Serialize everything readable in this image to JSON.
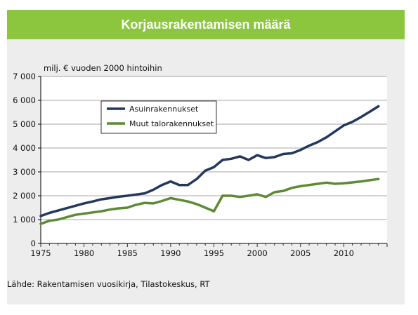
{
  "header": {
    "title": "Korjausrakentamisen määrä"
  },
  "chart_data": {
    "type": "line",
    "title": "Korjausrakentamisen määrä",
    "ylabel": "milj. € vuoden 2000 hintoihin",
    "xlabel": "",
    "source": "Lähde: Rakentamisen vuosikirja, Tilastokeskus, RT",
    "xlim": [
      1975,
      2015
    ],
    "ylim": [
      0,
      7000
    ],
    "x_ticks": [
      1975,
      1980,
      1985,
      1990,
      1995,
      2000,
      2005,
      2010
    ],
    "y_ticks": [
      {
        "value": 0,
        "label": "0"
      },
      {
        "value": 1000,
        "label": "1 000"
      },
      {
        "value": 2000,
        "label": "2 000"
      },
      {
        "value": 3000,
        "label": "3 000"
      },
      {
        "value": 4000,
        "label": "4 000"
      },
      {
        "value": 5000,
        "label": "5 000"
      },
      {
        "value": 6000,
        "label": "6 000"
      },
      {
        "value": 7000,
        "label": "7 000"
      }
    ],
    "grid": "horizontal",
    "legend_position": "top-left",
    "x": [
      1975,
      1976,
      1977,
      1978,
      1979,
      1980,
      1981,
      1982,
      1983,
      1984,
      1985,
      1986,
      1987,
      1988,
      1989,
      1990,
      1991,
      1992,
      1993,
      1994,
      1995,
      1996,
      1997,
      1998,
      1999,
      2000,
      2001,
      2002,
      2003,
      2004,
      2005,
      2006,
      2007,
      2008,
      2009,
      2010,
      2011,
      2012,
      2013,
      2014
    ],
    "series": [
      {
        "name": "Asuinrakennukset",
        "color": "#23375f",
        "values": [
          1150,
          1280,
          1380,
          1480,
          1580,
          1680,
          1760,
          1850,
          1900,
          1960,
          2000,
          2050,
          2100,
          2250,
          2450,
          2600,
          2450,
          2450,
          2700,
          3050,
          3200,
          3500,
          3550,
          3650,
          3500,
          3700,
          3580,
          3620,
          3750,
          3780,
          3920,
          4100,
          4250,
          4450,
          4700,
          4950,
          5100,
          5300,
          5520,
          5750
        ]
      },
      {
        "name": "Muut talorakennukset",
        "color": "#5d8a35",
        "values": [
          820,
          950,
          1000,
          1100,
          1200,
          1250,
          1300,
          1350,
          1420,
          1470,
          1500,
          1620,
          1700,
          1680,
          1780,
          1900,
          1830,
          1760,
          1650,
          1500,
          1350,
          2000,
          2000,
          1950,
          2000,
          2060,
          1950,
          2150,
          2200,
          2330,
          2400,
          2450,
          2500,
          2550,
          2500,
          2520,
          2560,
          2600,
          2650,
          2700
        ]
      }
    ]
  }
}
